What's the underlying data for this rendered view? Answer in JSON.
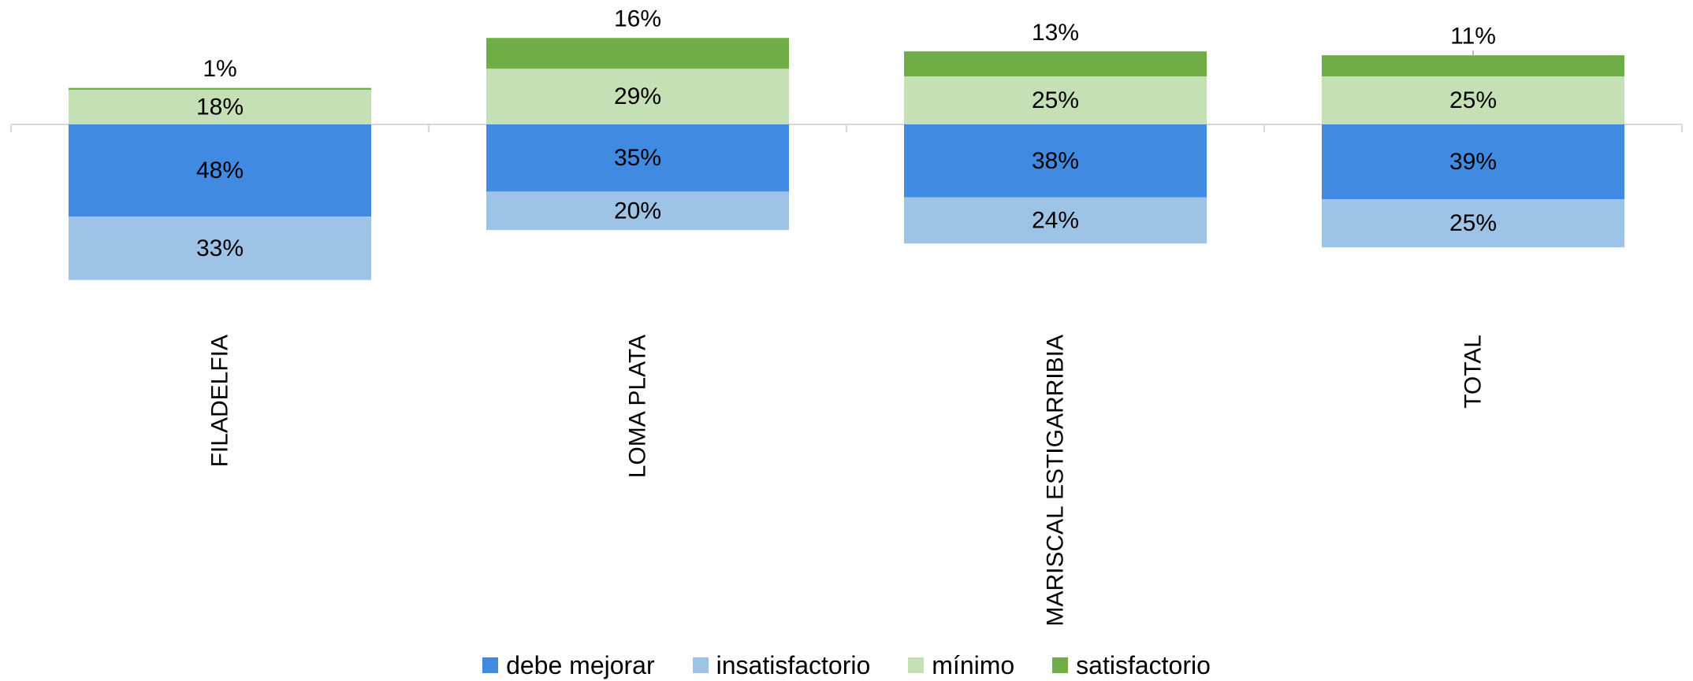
{
  "chart_data": {
    "type": "bar",
    "stacked": "diverging",
    "categories": [
      "FILADELFIA",
      "LOMA PLATA",
      "MARISCAL ESTIGARRIBIA",
      "TOTAL"
    ],
    "series": [
      {
        "name": "debe mejorar",
        "color": "#418AE1",
        "direction": "below",
        "values": [
          48,
          35,
          38,
          39
        ],
        "labels": [
          "48%",
          "35%",
          "38%",
          "39%"
        ]
      },
      {
        "name": "insatisfactorio",
        "color": "#9DC3E6",
        "direction": "below",
        "values": [
          33,
          20,
          24,
          25
        ],
        "labels": [
          "33%",
          "20%",
          "24%",
          "25%"
        ]
      },
      {
        "name": "mínimo",
        "color": "#C5E0B4",
        "direction": "above",
        "values": [
          18,
          29,
          25,
          25
        ],
        "labels": [
          "18%",
          "29%",
          "25%",
          "25%"
        ]
      },
      {
        "name": "satisfactorio",
        "color": "#70AD47",
        "direction": "above",
        "values": [
          1,
          16,
          13,
          11
        ],
        "labels": [
          "1%",
          "16%",
          "13%",
          "11%"
        ]
      }
    ],
    "legend_position": "bottom",
    "grid": false,
    "xlabel": "",
    "ylabel": ""
  }
}
